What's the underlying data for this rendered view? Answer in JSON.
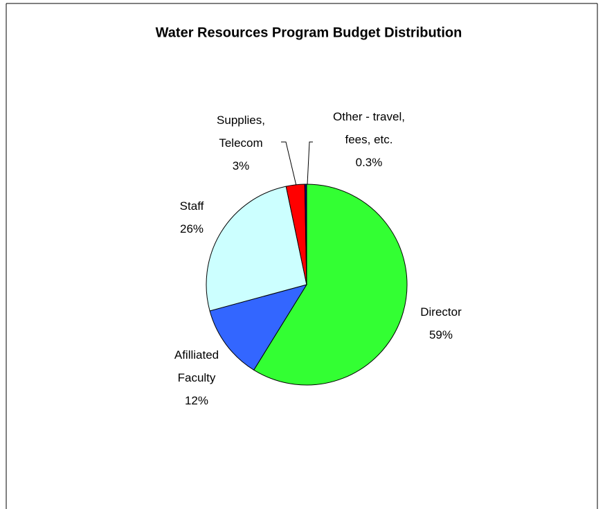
{
  "chart_data": {
    "type": "pie",
    "title": "Water Resources Program Budget Distribution",
    "categories": [
      "Director",
      "Afilliated\nFaculty",
      "Staff",
      "Supplies,\nTelecom",
      "Other - travel,\nfees, etc."
    ],
    "values": [
      59,
      12,
      26,
      3,
      0.3
    ],
    "value_labels": [
      "59%",
      "12%",
      "26%",
      "3%",
      "0.3%"
    ],
    "colors": [
      "#33ff33",
      "#3366ff",
      "#ccffff",
      "#ff0000",
      "#000080"
    ]
  }
}
